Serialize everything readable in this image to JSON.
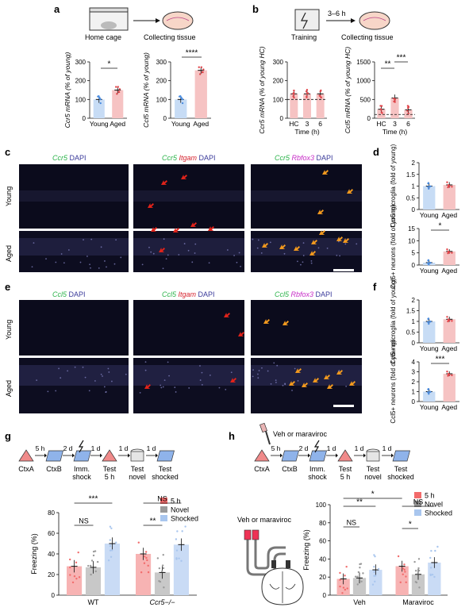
{
  "panel_letters": [
    "a",
    "b",
    "c",
    "d",
    "e",
    "f",
    "g",
    "h"
  ],
  "panel_a": {
    "schematic": {
      "from": "Home cage",
      "to": "Collecting tissue"
    },
    "ylabel_left": "Ccr5 mRNA (% of young)",
    "ylabel_right": "Ccl5 mRNA (% of young)",
    "xticks": [
      "Young",
      "Aged"
    ],
    "sig_left": "*",
    "sig_right": "****"
  },
  "panel_b": {
    "schematic": {
      "from": "Training",
      "interval": "3–6 h",
      "to": "Collecting tissue"
    },
    "ylabel_left": "Ccr5 mRNA (% of young HC)",
    "ylabel_right": "Ccl5 mRNA (% of young HC)",
    "xticks": [
      "HC",
      "3",
      "6"
    ],
    "xlabel": "Time (h)",
    "sig_right": [
      "**",
      "***"
    ]
  },
  "panel_c": {
    "col_labels": [
      {
        "a": "Ccr5",
        "b": " DAPI",
        "c": ""
      },
      {
        "a": "Ccr5",
        "b": " Itgam",
        "c": " DAPI"
      },
      {
        "a": "Ccr5",
        "b": " Rbfox3",
        "c": " DAPI"
      }
    ],
    "row_labels": [
      "Young",
      "Aged"
    ]
  },
  "panel_d": {
    "ylabel_top": "Ccr5 microglia (fold of young)",
    "ylabel_bottom": "Ccr5+ neurons (fold of young)",
    "xticks": [
      "Young",
      "Aged"
    ],
    "sig_bottom": "*"
  },
  "panel_e": {
    "col_labels": [
      {
        "a": "Ccl5",
        "b": " DAPI",
        "c": ""
      },
      {
        "a": "Ccl5",
        "b": " Itgam",
        "c": " DAPI"
      },
      {
        "a": "Ccl5",
        "b": " Rbfox3",
        "c": " DAPI"
      }
    ],
    "row_labels": [
      "Young",
      "Aged"
    ]
  },
  "panel_f": {
    "ylabel_top": "Ccl5+ microglia (fold of young)",
    "ylabel_bottom": "Ccl5+ neurons (fold of young)",
    "xticks": [
      "Young",
      "Aged"
    ],
    "sig_bottom": "***"
  },
  "panel_g": {
    "timeline": {
      "steps": [
        "CtxA",
        "CtxB",
        "Imm. shock",
        "Test 5 h",
        "Test novel",
        "Test shocked"
      ],
      "intervals": [
        "5 h",
        "2 d",
        "1 d",
        "1 d",
        "1 d"
      ]
    },
    "ylabel": "Freezing (%)",
    "groups": [
      "WT",
      "Ccr5−/−"
    ],
    "sig": [
      "***",
      "NS",
      "NS",
      "**"
    ]
  },
  "panel_h": {
    "treatment": "Veh or maraviroc",
    "timeline": {
      "steps": [
        "CtxA",
        "CtxB",
        "Imm. shock",
        "Test 5 h",
        "Test novel",
        "Test shocked"
      ],
      "intervals": [
        "5 h",
        "2 d",
        "1 d",
        "1 d",
        "1 d"
      ]
    },
    "cannula_label": "Veh or maraviroc",
    "ylabel": "Freezing (%)",
    "groups": [
      "Veh",
      "Maraviroc"
    ],
    "sig": [
      "*",
      "**",
      "NS",
      "NS",
      "*"
    ]
  },
  "colors": {
    "young": "#c7dcf5",
    "aged": "#f6c3c3",
    "five_h": "#f26b6b",
    "novel": "#9a9a9a",
    "shocked": "#a9c6ee",
    "red_arrow": "#e2231a",
    "orange_arrow": "#f39a1e"
  },
  "chart_data": [
    {
      "id": "a-left",
      "type": "bar",
      "categories": [
        "Young",
        "Aged"
      ],
      "values": [
        100,
        150
      ],
      "ylabel": "Ccr5 mRNA (% of young)",
      "ylim": [
        0,
        300
      ]
    },
    {
      "id": "a-right",
      "type": "bar",
      "categories": [
        "Young",
        "Aged"
      ],
      "values": [
        100,
        255
      ],
      "ylabel": "Ccl5 mRNA (% of young)",
      "ylim": [
        0,
        300
      ]
    },
    {
      "id": "b-left",
      "type": "bar",
      "categories": [
        "HC",
        "3",
        "6"
      ],
      "values": [
        130,
        130,
        130
      ],
      "ylabel": "Ccr5 mRNA (% of young HC)",
      "xlabel": "Time (h)",
      "ylim": [
        0,
        300
      ]
    },
    {
      "id": "b-right",
      "type": "bar",
      "categories": [
        "HC",
        "3",
        "6"
      ],
      "values": [
        240,
        540,
        225
      ],
      "ylabel": "Ccl5 mRNA (% of young HC)",
      "xlabel": "Time (h)",
      "ylim": [
        0,
        1500
      ]
    },
    {
      "id": "d-top",
      "type": "bar",
      "categories": [
        "Young",
        "Aged"
      ],
      "values": [
        1.0,
        1.05
      ],
      "ylim": [
        0,
        2.0
      ]
    },
    {
      "id": "d-bottom",
      "type": "bar",
      "categories": [
        "Young",
        "Aged"
      ],
      "values": [
        1.0,
        5.6
      ],
      "ylim": [
        0,
        15
      ]
    },
    {
      "id": "f-top",
      "type": "bar",
      "categories": [
        "Young",
        "Aged"
      ],
      "values": [
        1.0,
        1.1
      ],
      "ylim": [
        0,
        2.0
      ]
    },
    {
      "id": "f-bottom",
      "type": "bar",
      "categories": [
        "Young",
        "Aged"
      ],
      "values": [
        1.0,
        2.8
      ],
      "ylim": [
        0,
        4
      ]
    },
    {
      "id": "g",
      "type": "bar",
      "categories": [
        "WT",
        "Ccr5−/−"
      ],
      "ylabel": "Freezing (%)",
      "ylim": [
        0,
        80
      ],
      "series": [
        {
          "name": "5 h",
          "values": [
            28,
            40
          ]
        },
        {
          "name": "Novel",
          "values": [
            27,
            22
          ]
        },
        {
          "name": "Shocked",
          "values": [
            50,
            49
          ]
        }
      ]
    },
    {
      "id": "h",
      "type": "bar",
      "categories": [
        "Veh",
        "Maraviroc"
      ],
      "ylabel": "Freezing (%)",
      "ylim": [
        0,
        100
      ],
      "series": [
        {
          "name": "5 h",
          "values": [
            18,
            32
          ]
        },
        {
          "name": "Novel",
          "values": [
            19,
            23
          ]
        },
        {
          "name": "Shocked",
          "values": [
            28,
            36
          ]
        }
      ]
    }
  ]
}
